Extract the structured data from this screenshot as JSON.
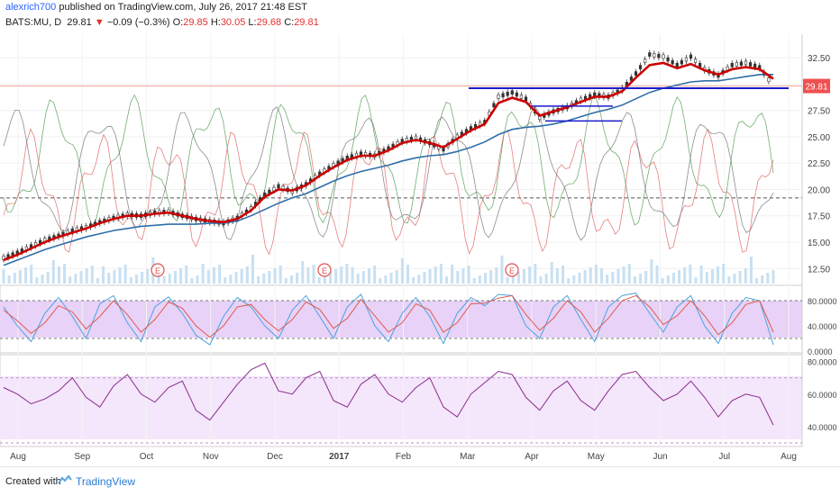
{
  "header": {
    "user": "alexrich700",
    "published": "published on TradingView.com, July 26, 2017 21:48 EST",
    "symbol": "BATS:MU, D",
    "last": "29.81",
    "change": "−0.09 (−0.3%)",
    "o_label": "O:",
    "o_val": "29.85",
    "h_label": "H:",
    "h_val": "30.05",
    "l_label": "L:",
    "l_val": "29.68",
    "c_label": "C:",
    "c_val": "29.81"
  },
  "footer": {
    "created_with": "Created with",
    "brand": "TradingView"
  },
  "colors": {
    "up": "#2c3e50",
    "sma": "#cc0000",
    "ma_long": "#2f6ea8",
    "green_osc": "#5aa05a",
    "red_osc": "#e06060",
    "gray_osc": "#707070",
    "hline": "#1a1acc",
    "price_badge": "#f05050",
    "stoch_bg": "#e8d2f7",
    "rsi_bg": "#f4e6fb",
    "stoch_k": "#4aa3e0",
    "stoch_d": "#e05a50",
    "rsi": "#8a2b8a"
  },
  "chart_data": [
    {
      "type": "line",
      "title": "BATS:MU, D",
      "x_ticks": [
        "Aug",
        "Sep",
        "Oct",
        "Nov",
        "Dec",
        "2017",
        "Feb",
        "Mar",
        "Apr",
        "May",
        "Jun",
        "Jul",
        "Aug"
      ],
      "y_ticks": [
        "32.50",
        "30.00",
        "27.50",
        "25.00",
        "22.50",
        "20.00",
        "17.50",
        "15.00",
        "12.50"
      ],
      "ylim": [
        11.5,
        33.7
      ],
      "current_price_label": "29.81",
      "horizontal_line": 29.6,
      "dashed_level": 19.2,
      "series": [
        {
          "values": [
            13.5,
            14.0,
            14.6,
            15.2,
            15.6,
            16.1,
            16.4,
            16.9,
            17.3,
            17.6,
            17.5,
            17.8,
            17.9,
            17.5,
            17.2,
            17.0,
            16.8,
            17.3,
            18.2,
            19.5,
            20.3,
            19.8,
            20.5,
            21.5,
            22.3,
            23.0,
            23.4,
            23.2,
            23.9,
            24.6,
            24.9,
            24.4,
            23.8,
            25.0,
            25.8,
            26.4,
            28.8,
            29.2,
            28.6,
            26.8,
            27.4,
            27.8,
            28.5,
            29.0,
            28.8,
            29.5,
            31.0,
            32.8,
            32.6,
            31.8,
            32.6,
            31.4,
            30.8,
            31.8,
            32.0,
            31.6,
            29.8
          ]
        },
        {
          "values": [
            13.3,
            13.8,
            14.4,
            15.0,
            15.5,
            15.9,
            16.3,
            16.8,
            17.2,
            17.5,
            17.5,
            17.7,
            17.8,
            17.5,
            17.2,
            17.0,
            16.9,
            17.2,
            18.0,
            19.3,
            20.0,
            19.9,
            20.4,
            21.3,
            22.1,
            22.8,
            23.2,
            23.2,
            23.7,
            24.4,
            24.7,
            24.4,
            24.0,
            24.8,
            25.6,
            26.2,
            28.2,
            28.7,
            28.3,
            27.0,
            27.4,
            27.8,
            28.3,
            28.8,
            28.8,
            29.3,
            30.6,
            31.8,
            32.0,
            31.5,
            31.9,
            31.3,
            30.9,
            31.4,
            31.6,
            31.4,
            30.5
          ]
        },
        {
          "values": [
            12.8,
            13.3,
            13.8,
            14.3,
            14.7,
            15.1,
            15.5,
            15.8,
            16.1,
            16.3,
            16.5,
            16.6,
            16.7,
            16.7,
            16.7,
            16.8,
            16.8,
            17.0,
            17.5,
            18.1,
            18.7,
            19.2,
            19.6,
            20.2,
            20.8,
            21.3,
            21.7,
            22.0,
            22.3,
            22.7,
            23.0,
            23.2,
            23.3,
            23.6,
            24.0,
            24.5,
            25.2,
            25.7,
            25.9,
            26.0,
            26.2,
            26.5,
            26.9,
            27.3,
            27.6,
            28.0,
            28.6,
            29.2,
            29.6,
            29.9,
            30.2,
            30.3,
            30.3,
            30.5,
            30.7,
            30.9,
            30.9
          ]
        }
      ]
    },
    {
      "type": "line",
      "title": "",
      "y_ticks": [
        "80.0000",
        "40.0000",
        "0.0000"
      ],
      "ylim": [
        0,
        100
      ],
      "bands": [
        80,
        20
      ],
      "series": [
        {
          "values": [
            70,
            40,
            15,
            60,
            85,
            55,
            20,
            75,
            88,
            45,
            15,
            70,
            86,
            60,
            25,
            10,
            55,
            85,
            70,
            40,
            20,
            65,
            88,
            55,
            20,
            70,
            90,
            40,
            15,
            60,
            85,
            55,
            12,
            60,
            85,
            72,
            90,
            88,
            40,
            20,
            70,
            88,
            50,
            15,
            70,
            88,
            92,
            60,
            30,
            70,
            88,
            40,
            12,
            60,
            85,
            80,
            10
          ]
        },
        {
          "values": [
            65,
            48,
            28,
            45,
            72,
            62,
            35,
            55,
            80,
            58,
            30,
            50,
            78,
            68,
            40,
            22,
            40,
            70,
            74,
            50,
            32,
            50,
            78,
            66,
            36,
            52,
            82,
            56,
            30,
            45,
            75,
            65,
            30,
            45,
            75,
            76,
            84,
            88,
            58,
            33,
            52,
            80,
            62,
            30,
            52,
            80,
            88,
            70,
            42,
            56,
            80,
            56,
            26,
            45,
            74,
            80,
            30
          ]
        }
      ]
    },
    {
      "type": "line",
      "title": "",
      "y_ticks": [
        "80.0000",
        "60.0000",
        "40.0000"
      ],
      "ylim": [
        30,
        82
      ],
      "bands": [
        70,
        30
      ],
      "series": [
        {
          "values": [
            64,
            60,
            54,
            57,
            62,
            70,
            58,
            52,
            65,
            72,
            60,
            55,
            64,
            68,
            50,
            44,
            55,
            66,
            75,
            79,
            62,
            60,
            70,
            74,
            56,
            52,
            66,
            72,
            60,
            55,
            64,
            70,
            52,
            46,
            60,
            67,
            74,
            72,
            58,
            50,
            62,
            68,
            56,
            50,
            62,
            72,
            74,
            64,
            56,
            60,
            68,
            58,
            46,
            56,
            60,
            58,
            41
          ]
        }
      ]
    }
  ]
}
